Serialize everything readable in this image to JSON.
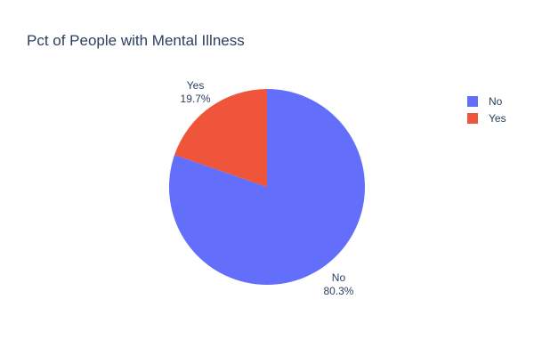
{
  "chart_data": {
    "type": "pie",
    "title": "Pct of People with Mental Illness",
    "slices": [
      {
        "label": "No",
        "value": 80.3,
        "percent_text": "80.3%",
        "color": "#636efa"
      },
      {
        "label": "Yes",
        "value": 19.7,
        "percent_text": "19.7%",
        "color": "#ef553b"
      }
    ],
    "legend": {
      "position": "top-right",
      "entries": [
        "No",
        "Yes"
      ]
    }
  }
}
